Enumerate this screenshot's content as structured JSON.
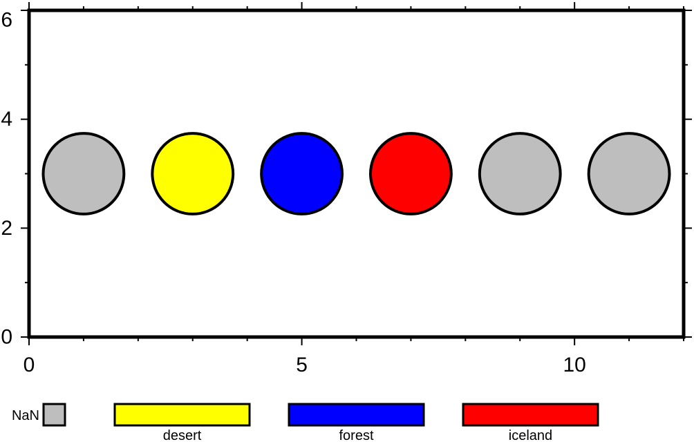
{
  "chart_data": {
    "type": "scatter",
    "title": "",
    "xlabel": "",
    "ylabel": "",
    "xlim": [
      0,
      12
    ],
    "ylim": [
      0,
      6
    ],
    "x_ticks": [
      0,
      5,
      10
    ],
    "y_ticks": [
      0,
      2,
      4,
      6
    ],
    "x_tick_labels": [
      "0",
      "5",
      "10"
    ],
    "y_tick_labels": [
      "0",
      "2",
      "4",
      "6"
    ],
    "x_minor_step": 1,
    "y_minor_step": 1,
    "grid": false,
    "marker": "circle",
    "points": [
      {
        "x": 1,
        "y": 3,
        "category": "NaN"
      },
      {
        "x": 3,
        "y": 3,
        "category": "desert"
      },
      {
        "x": 5,
        "y": 3,
        "category": "forest"
      },
      {
        "x": 7,
        "y": 3,
        "category": "iceland"
      },
      {
        "x": 9,
        "y": 3,
        "category": "NaN"
      },
      {
        "x": 11,
        "y": 3,
        "category": "NaN"
      }
    ],
    "legend_placement": "bottom",
    "legend": {
      "nan": {
        "label": "NaN",
        "color": "#bebebe"
      },
      "categories": [
        {
          "label": "desert",
          "color": "#ffff00"
        },
        {
          "label": "forest",
          "color": "#0000ff"
        },
        {
          "label": "iceland",
          "color": "#ff0000"
        }
      ]
    }
  }
}
